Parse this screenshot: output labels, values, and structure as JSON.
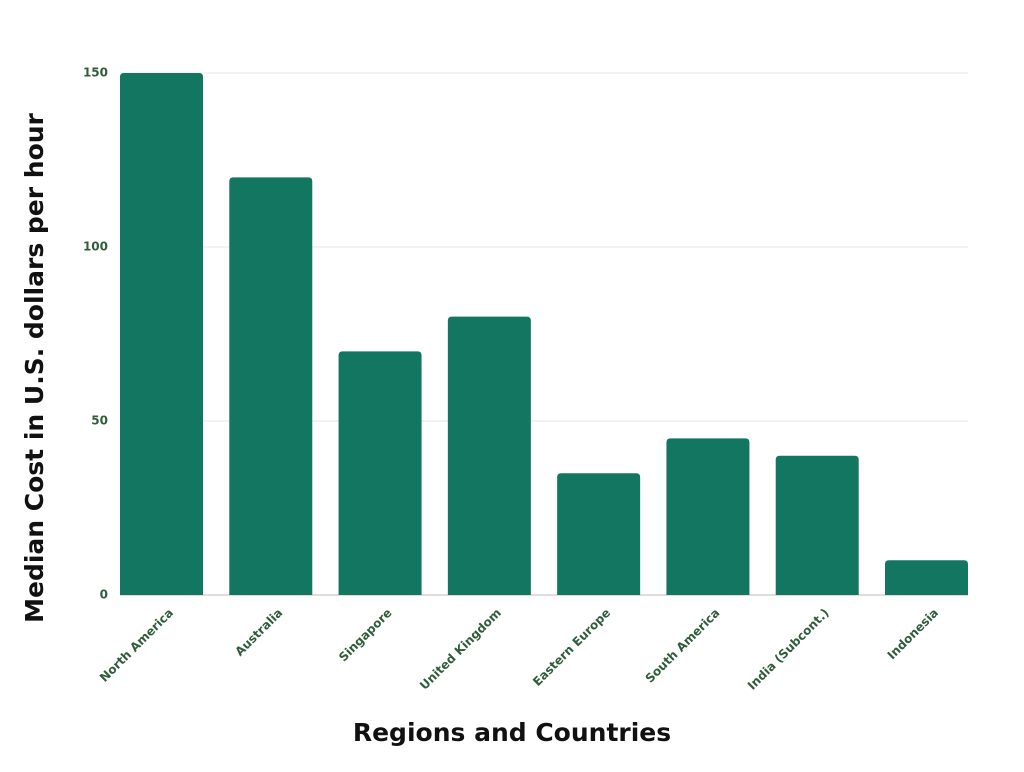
{
  "chart_data": {
    "type": "bar",
    "categories": [
      "North America",
      "Australia",
      "Singapore",
      "United Kingdom",
      "Eastern Europe",
      "South America",
      "India (Subcont.)",
      "Indonesia"
    ],
    "values": [
      150,
      120,
      70,
      80,
      35,
      45,
      40,
      10
    ],
    "color": "#137660",
    "x_label": "Regions and Countries",
    "y_label": "Median Cost in U.S. dollars per hour",
    "ylim": [
      0,
      150
    ],
    "yticks": [
      0,
      50,
      100,
      150
    ],
    "grid": true
  }
}
